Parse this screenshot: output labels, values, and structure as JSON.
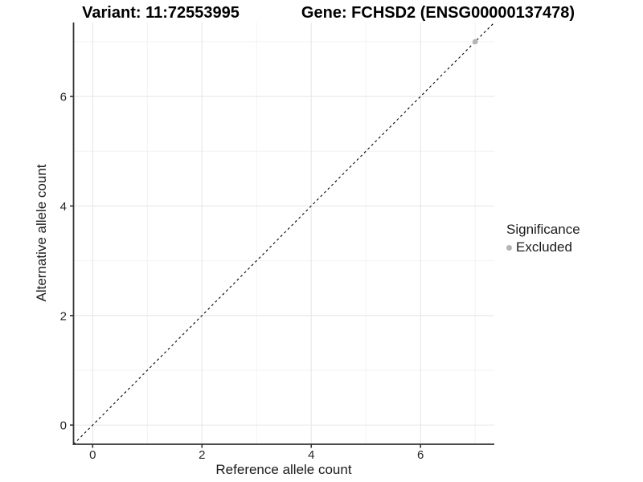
{
  "chart_data": {
    "type": "scatter",
    "titles": [
      "Variant: 11:72553995",
      "Gene: FCHSD2 (ENSG00000137478)"
    ],
    "xlabel": "Reference allele count",
    "ylabel": "Alternative allele count",
    "xlim": [
      -0.35,
      7.35
    ],
    "ylim": [
      -0.35,
      7.35
    ],
    "x_ticks": [
      0,
      2,
      4,
      6
    ],
    "y_ticks": [
      0,
      2,
      4,
      6
    ],
    "x_minor_ticks": [
      1,
      3,
      5,
      7
    ],
    "y_minor_ticks": [
      1,
      3,
      5,
      7
    ],
    "grid": "major+minor",
    "legend": {
      "title": "Significance",
      "position": "right"
    },
    "series": [
      {
        "name": "Excluded",
        "color": "#b4b4b4",
        "marker": "dot",
        "points": [
          {
            "x": 7,
            "y": 7
          }
        ]
      }
    ],
    "reference_line": {
      "kind": "identity",
      "from": [
        -0.35,
        -0.35
      ],
      "to": [
        7.35,
        7.35
      ],
      "style": "dashed",
      "color": "#000000"
    }
  }
}
